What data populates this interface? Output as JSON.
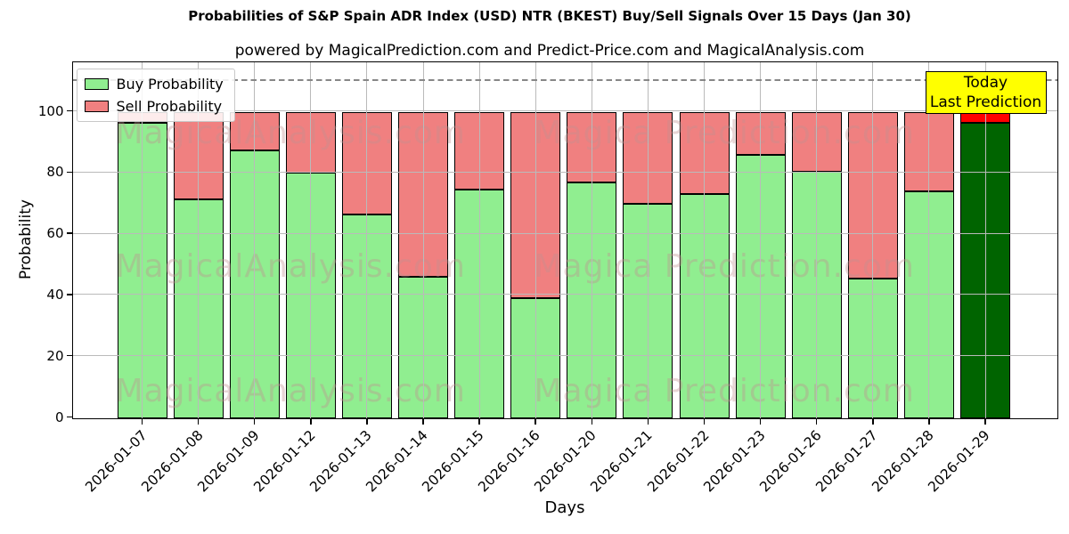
{
  "legend": {
    "position": "upper left"
  },
  "annotation_box": {
    "line1": "Today",
    "line2": "Last Prediction",
    "bg_color": "#ffff00"
  },
  "watermarks": {
    "left_text": "MagicalAnalysis.com",
    "right_text": "Magica Prediction.com"
  },
  "chart_data": {
    "type": "bar",
    "stacked": true,
    "title": "Probabilities of S&P Spain ADR Index (USD) NTR (BKEST) Buy/Sell Signals Over 15 Days (Jan 30)",
    "subtitle": "powered by MagicalPrediction.com and Predict-Price.com and MagicalAnalysis.com",
    "xlabel": "Days",
    "ylabel": "Probability",
    "categories": [
      "2026-01-07",
      "2026-01-08",
      "2026-01-09",
      "2026-01-12",
      "2026-01-13",
      "2026-01-14",
      "2026-01-15",
      "2026-01-16",
      "2026-01-20",
      "2026-01-21",
      "2026-01-22",
      "2026-01-23",
      "2026-01-26",
      "2026-01-27",
      "2026-01-28",
      "2026-01-29"
    ],
    "series": [
      {
        "name": "Buy Probability",
        "color": "#90ee90",
        "values": [
          96.5,
          71.5,
          87.5,
          80,
          66.5,
          46,
          74.5,
          39,
          77,
          70,
          73,
          86,
          80.5,
          45.5,
          74,
          96.5
        ]
      },
      {
        "name": "Sell Probability",
        "color": "#f08080",
        "values": [
          3.5,
          28.5,
          12.5,
          20,
          33.5,
          54,
          25.5,
          61,
          23,
          30,
          27,
          14,
          19.5,
          54.5,
          26,
          3.5
        ]
      }
    ],
    "today_bar": {
      "category": "2026-01-29",
      "buy_color": "#006400",
      "sell_color": "#ff0000"
    },
    "yticks": [
      0,
      20,
      40,
      60,
      80,
      100
    ],
    "ylim": [
      0,
      116
    ],
    "dashed_line_y": 110,
    "grid": true,
    "legend_position": "upper left"
  }
}
